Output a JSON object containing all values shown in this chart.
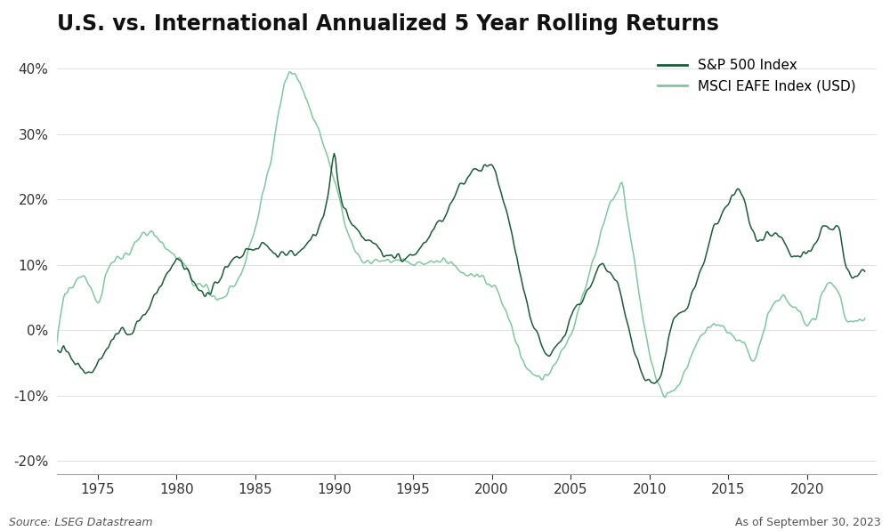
{
  "title": "U.S. vs. International Annualized 5 Year Rolling Returns",
  "sp500_color": "#1a5c38",
  "msci_color": "#7dc8a0",
  "ylim": [
    -0.22,
    0.44
  ],
  "yticks": [
    -0.2,
    -0.1,
    0.0,
    0.1,
    0.2,
    0.3,
    0.4
  ],
  "ytick_labels": [
    "-20%",
    "-10%",
    "0%",
    "10%",
    "20%",
    "30%",
    "40%"
  ],
  "source_text": "Source: LSEG Datastream",
  "date_text": "As of September 30, 2023",
  "line_width": 1.1,
  "title_fontsize": 17,
  "label_fontsize": 11,
  "legend_fontsize": 11,
  "sp500_points": [
    [
      1972.0,
      -0.01
    ],
    [
      1972.5,
      -0.03
    ],
    [
      1973.0,
      -0.03
    ],
    [
      1973.5,
      -0.05
    ],
    [
      1974.0,
      -0.06
    ],
    [
      1974.5,
      -0.07
    ],
    [
      1975.0,
      -0.05
    ],
    [
      1975.5,
      -0.03
    ],
    [
      1976.0,
      -0.01
    ],
    [
      1976.5,
      0.0
    ],
    [
      1977.0,
      -0.01
    ],
    [
      1977.5,
      0.01
    ],
    [
      1978.0,
      0.03
    ],
    [
      1978.5,
      0.05
    ],
    [
      1979.0,
      0.07
    ],
    [
      1979.5,
      0.09
    ],
    [
      1980.0,
      0.115
    ],
    [
      1980.5,
      0.1
    ],
    [
      1981.0,
      0.08
    ],
    [
      1981.5,
      0.06
    ],
    [
      1982.0,
      0.055
    ],
    [
      1982.5,
      0.07
    ],
    [
      1983.0,
      0.09
    ],
    [
      1983.5,
      0.1
    ],
    [
      1984.0,
      0.115
    ],
    [
      1984.5,
      0.12
    ],
    [
      1985.0,
      0.125
    ],
    [
      1985.5,
      0.13
    ],
    [
      1986.0,
      0.125
    ],
    [
      1986.5,
      0.115
    ],
    [
      1987.0,
      0.115
    ],
    [
      1987.5,
      0.115
    ],
    [
      1988.0,
      0.125
    ],
    [
      1988.5,
      0.14
    ],
    [
      1989.0,
      0.16
    ],
    [
      1989.5,
      0.195
    ],
    [
      1990.0,
      0.265
    ],
    [
      1990.3,
      0.22
    ],
    [
      1990.6,
      0.185
    ],
    [
      1991.0,
      0.165
    ],
    [
      1991.5,
      0.155
    ],
    [
      1992.0,
      0.145
    ],
    [
      1992.5,
      0.135
    ],
    [
      1993.0,
      0.12
    ],
    [
      1993.5,
      0.115
    ],
    [
      1994.0,
      0.115
    ],
    [
      1994.5,
      0.11
    ],
    [
      1995.0,
      0.115
    ],
    [
      1995.5,
      0.125
    ],
    [
      1996.0,
      0.145
    ],
    [
      1996.5,
      0.16
    ],
    [
      1997.0,
      0.175
    ],
    [
      1997.5,
      0.195
    ],
    [
      1998.0,
      0.215
    ],
    [
      1998.5,
      0.23
    ],
    [
      1999.0,
      0.245
    ],
    [
      1999.5,
      0.255
    ],
    [
      2000.0,
      0.25
    ],
    [
      2000.5,
      0.22
    ],
    [
      2001.0,
      0.175
    ],
    [
      2001.5,
      0.12
    ],
    [
      2002.0,
      0.065
    ],
    [
      2002.5,
      0.015
    ],
    [
      2003.0,
      -0.02
    ],
    [
      2003.5,
      -0.04
    ],
    [
      2004.0,
      -0.025
    ],
    [
      2004.5,
      -0.01
    ],
    [
      2005.0,
      0.02
    ],
    [
      2005.5,
      0.04
    ],
    [
      2006.0,
      0.06
    ],
    [
      2006.5,
      0.08
    ],
    [
      2007.0,
      0.1
    ],
    [
      2007.5,
      0.09
    ],
    [
      2008.0,
      0.07
    ],
    [
      2008.5,
      0.02
    ],
    [
      2009.0,
      -0.03
    ],
    [
      2009.5,
      -0.065
    ],
    [
      2010.0,
      -0.085
    ],
    [
      2010.5,
      -0.075
    ],
    [
      2011.0,
      -0.04
    ],
    [
      2011.3,
      -0.01
    ],
    [
      2011.5,
      0.01
    ],
    [
      2012.0,
      0.02
    ],
    [
      2012.5,
      0.04
    ],
    [
      2013.0,
      0.075
    ],
    [
      2013.5,
      0.11
    ],
    [
      2014.0,
      0.155
    ],
    [
      2014.5,
      0.175
    ],
    [
      2015.0,
      0.19
    ],
    [
      2015.5,
      0.215
    ],
    [
      2016.0,
      0.195
    ],
    [
      2016.5,
      0.155
    ],
    [
      2017.0,
      0.145
    ],
    [
      2017.5,
      0.145
    ],
    [
      2018.0,
      0.15
    ],
    [
      2018.5,
      0.14
    ],
    [
      2019.0,
      0.115
    ],
    [
      2019.5,
      0.11
    ],
    [
      2020.0,
      0.12
    ],
    [
      2020.5,
      0.135
    ],
    [
      2021.0,
      0.155
    ],
    [
      2021.5,
      0.165
    ],
    [
      2022.0,
      0.155
    ],
    [
      2022.5,
      0.095
    ],
    [
      2023.0,
      0.085
    ],
    [
      2023.75,
      0.09
    ]
  ],
  "msci_points": [
    [
      1972.0,
      -0.025
    ],
    [
      1972.25,
      -0.04
    ],
    [
      1972.5,
      0.0
    ],
    [
      1972.75,
      0.04
    ],
    [
      1973.0,
      0.06
    ],
    [
      1973.5,
      0.075
    ],
    [
      1974.0,
      0.085
    ],
    [
      1974.5,
      0.065
    ],
    [
      1975.0,
      0.04
    ],
    [
      1975.25,
      0.055
    ],
    [
      1975.5,
      0.085
    ],
    [
      1975.75,
      0.1
    ],
    [
      1976.0,
      0.105
    ],
    [
      1976.5,
      0.11
    ],
    [
      1977.0,
      0.12
    ],
    [
      1977.5,
      0.135
    ],
    [
      1978.0,
      0.145
    ],
    [
      1978.5,
      0.145
    ],
    [
      1979.0,
      0.135
    ],
    [
      1979.5,
      0.125
    ],
    [
      1980.0,
      0.115
    ],
    [
      1980.5,
      0.1
    ],
    [
      1981.0,
      0.085
    ],
    [
      1981.5,
      0.07
    ],
    [
      1982.0,
      0.06
    ],
    [
      1982.5,
      0.05
    ],
    [
      1983.0,
      0.055
    ],
    [
      1983.5,
      0.065
    ],
    [
      1984.0,
      0.085
    ],
    [
      1984.5,
      0.115
    ],
    [
      1985.0,
      0.155
    ],
    [
      1985.5,
      0.21
    ],
    [
      1986.0,
      0.265
    ],
    [
      1986.5,
      0.335
    ],
    [
      1987.0,
      0.385
    ],
    [
      1987.25,
      0.395
    ],
    [
      1987.5,
      0.39
    ],
    [
      1988.0,
      0.365
    ],
    [
      1988.5,
      0.335
    ],
    [
      1989.0,
      0.31
    ],
    [
      1989.5,
      0.275
    ],
    [
      1990.0,
      0.23
    ],
    [
      1990.5,
      0.185
    ],
    [
      1991.0,
      0.145
    ],
    [
      1991.5,
      0.115
    ],
    [
      1992.0,
      0.105
    ],
    [
      1992.5,
      0.105
    ],
    [
      1993.0,
      0.105
    ],
    [
      1993.5,
      0.105
    ],
    [
      1994.0,
      0.105
    ],
    [
      1994.5,
      0.105
    ],
    [
      1995.0,
      0.1
    ],
    [
      1995.5,
      0.105
    ],
    [
      1996.0,
      0.105
    ],
    [
      1996.5,
      0.105
    ],
    [
      1997.0,
      0.105
    ],
    [
      1997.5,
      0.1
    ],
    [
      1998.0,
      0.09
    ],
    [
      1998.5,
      0.085
    ],
    [
      1999.0,
      0.085
    ],
    [
      1999.5,
      0.08
    ],
    [
      2000.0,
      0.07
    ],
    [
      2000.5,
      0.05
    ],
    [
      2001.0,
      0.02
    ],
    [
      2001.5,
      -0.02
    ],
    [
      2002.0,
      -0.045
    ],
    [
      2002.5,
      -0.06
    ],
    [
      2003.0,
      -0.07
    ],
    [
      2003.5,
      -0.07
    ],
    [
      2004.0,
      -0.055
    ],
    [
      2004.5,
      -0.035
    ],
    [
      2005.0,
      -0.01
    ],
    [
      2005.5,
      0.03
    ],
    [
      2006.0,
      0.07
    ],
    [
      2006.5,
      0.115
    ],
    [
      2007.0,
      0.155
    ],
    [
      2007.5,
      0.19
    ],
    [
      2008.0,
      0.21
    ],
    [
      2008.25,
      0.225
    ],
    [
      2008.5,
      0.185
    ],
    [
      2009.0,
      0.11
    ],
    [
      2009.5,
      0.03
    ],
    [
      2010.0,
      -0.035
    ],
    [
      2010.5,
      -0.08
    ],
    [
      2011.0,
      -0.1
    ],
    [
      2011.5,
      -0.095
    ],
    [
      2012.0,
      -0.075
    ],
    [
      2012.5,
      -0.05
    ],
    [
      2013.0,
      -0.025
    ],
    [
      2013.5,
      -0.005
    ],
    [
      2014.0,
      0.01
    ],
    [
      2014.5,
      0.01
    ],
    [
      2015.0,
      0.0
    ],
    [
      2015.5,
      -0.01
    ],
    [
      2016.0,
      -0.02
    ],
    [
      2016.5,
      -0.045
    ],
    [
      2017.0,
      -0.02
    ],
    [
      2017.5,
      0.02
    ],
    [
      2018.0,
      0.04
    ],
    [
      2018.5,
      0.05
    ],
    [
      2019.0,
      0.04
    ],
    [
      2019.5,
      0.025
    ],
    [
      2020.0,
      0.01
    ],
    [
      2020.5,
      0.015
    ],
    [
      2021.0,
      0.055
    ],
    [
      2021.5,
      0.07
    ],
    [
      2022.0,
      0.055
    ],
    [
      2022.5,
      0.02
    ],
    [
      2023.0,
      0.01
    ],
    [
      2023.75,
      0.015
    ]
  ]
}
